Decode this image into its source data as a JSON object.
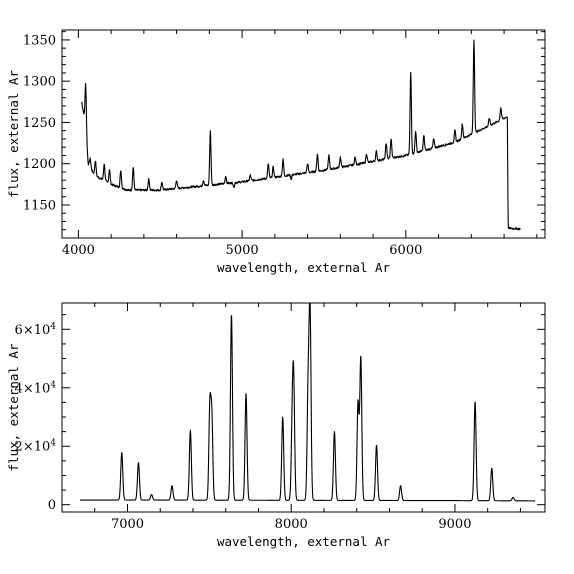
{
  "chart_data": [
    {
      "type": "line",
      "xlabel": "wavelength, external Ar",
      "ylabel": "flux, external Ar",
      "xlim": [
        3900,
        6850
      ],
      "ylim": [
        1110,
        1362
      ],
      "xticks": [
        {
          "v": 4000,
          "label": "4000"
        },
        {
          "v": 5000,
          "label": "5000"
        },
        {
          "v": 6000,
          "label": "6000"
        }
      ],
      "xminor_step": 200,
      "yticks": [
        {
          "v": 1150,
          "label": "1150"
        },
        {
          "v": 1200,
          "label": "1200"
        },
        {
          "v": 1250,
          "label": "1250"
        },
        {
          "v": 1300,
          "label": "1300"
        },
        {
          "v": 1350,
          "label": "1350"
        }
      ],
      "yminor_step": 10,
      "continuum": [
        [
          4020,
          1275
        ],
        [
          4040,
          1252
        ],
        [
          4060,
          1200
        ],
        [
          4100,
          1186
        ],
        [
          4200,
          1175
        ],
        [
          4300,
          1168
        ],
        [
          4500,
          1168
        ],
        [
          4700,
          1172
        ],
        [
          5000,
          1178
        ],
        [
          5500,
          1192
        ],
        [
          6000,
          1210
        ],
        [
          6300,
          1226
        ],
        [
          6550,
          1250
        ],
        [
          6620,
          1257
        ],
        [
          6625,
          1122
        ],
        [
          6700,
          1121
        ]
      ],
      "lines": [
        [
          4045,
          1296
        ],
        [
          4072,
          1206
        ],
        [
          4104,
          1204
        ],
        [
          4158,
          1200
        ],
        [
          4190,
          1193
        ],
        [
          4259,
          1192
        ],
        [
          4335,
          1196
        ],
        [
          4430,
          1182
        ],
        [
          4510,
          1178
        ],
        [
          4600,
          1180
        ],
        [
          4764,
          1180
        ],
        [
          4806,
          1240
        ],
        [
          4900,
          1185
        ],
        [
          5050,
          1186
        ],
        [
          5160,
          1200
        ],
        [
          5190,
          1196
        ],
        [
          5250,
          1205
        ],
        [
          5400,
          1200
        ],
        [
          5460,
          1212
        ],
        [
          5530,
          1210
        ],
        [
          5600,
          1208
        ],
        [
          5690,
          1208
        ],
        [
          5760,
          1212
        ],
        [
          5820,
          1215
        ],
        [
          5880,
          1225
        ],
        [
          5910,
          1230
        ],
        [
          6030,
          1310
        ],
        [
          6060,
          1240
        ],
        [
          6110,
          1234
        ],
        [
          6170,
          1230
        ],
        [
          6300,
          1240
        ],
        [
          6345,
          1248
        ],
        [
          6416,
          1350
        ],
        [
          6510,
          1255
        ],
        [
          6580,
          1268
        ]
      ],
      "dips": [
        [
          4950,
          1171
        ],
        [
          5300,
          1181
        ]
      ]
    },
    {
      "type": "line",
      "xlabel": "wavelength, external Ar",
      "ylabel": "flux, external Ar",
      "xlim": [
        6600,
        9550
      ],
      "ylim": [
        -2500,
        69000
      ],
      "xticks": [
        {
          "v": 7000,
          "label": "7000"
        },
        {
          "v": 8000,
          "label": "8000"
        },
        {
          "v": 9000,
          "label": "9000"
        }
      ],
      "xminor_step": 200,
      "yticks": [
        {
          "v": 0,
          "label": "0",
          "exp": ""
        },
        {
          "v": 20000,
          "label": "2×10",
          "exp": "4"
        },
        {
          "v": 40000,
          "label": "4×10",
          "exp": "4"
        },
        {
          "v": 60000,
          "label": "6×10",
          "exp": "4"
        }
      ],
      "yminor_step": 5000,
      "continuum": [
        [
          6710,
          1600
        ],
        [
          7000,
          1600
        ],
        [
          8000,
          1500
        ],
        [
          9000,
          1400
        ],
        [
          9490,
          1300
        ]
      ],
      "lines": [
        [
          6965,
          18000
        ],
        [
          7067,
          14500
        ],
        [
          7147,
          3500
        ],
        [
          7272,
          6500
        ],
        [
          7384,
          25500
        ],
        [
          7503,
          33000
        ],
        [
          7515,
          29500
        ],
        [
          7635,
          65500
        ],
        [
          7724,
          38000
        ],
        [
          7948,
          30000
        ],
        [
          8006,
          25000
        ],
        [
          8015,
          39500
        ],
        [
          8103,
          38000
        ],
        [
          8115,
          65500
        ],
        [
          8264,
          25000
        ],
        [
          8408,
          35000
        ],
        [
          8425,
          50500
        ],
        [
          8521,
          20500
        ],
        [
          8668,
          6500
        ],
        [
          9123,
          35500
        ],
        [
          9225,
          12500
        ],
        [
          9355,
          2500
        ]
      ]
    }
  ]
}
